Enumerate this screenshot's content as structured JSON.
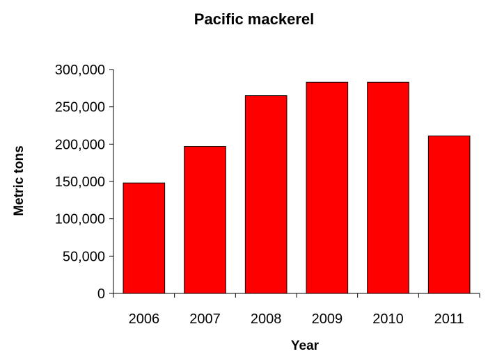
{
  "chart_data": {
    "type": "bar",
    "title": "Pacific mackerel",
    "xlabel": "Year",
    "ylabel": "Metric tons",
    "categories": [
      "2006",
      "2007",
      "2008",
      "2009",
      "2010",
      "2011"
    ],
    "values": [
      148000,
      197000,
      265000,
      283000,
      283000,
      211000
    ],
    "ylim": [
      0,
      300000
    ],
    "yticks": [
      0,
      50000,
      100000,
      150000,
      200000,
      250000,
      300000
    ],
    "ytick_labels": [
      "0",
      "50,000",
      "100,000",
      "150,000",
      "200,000",
      "250,000",
      "300,000"
    ],
    "grid": false,
    "legend": "none",
    "bar_color": "#ff0000",
    "bar_edge_color": "#000000"
  }
}
